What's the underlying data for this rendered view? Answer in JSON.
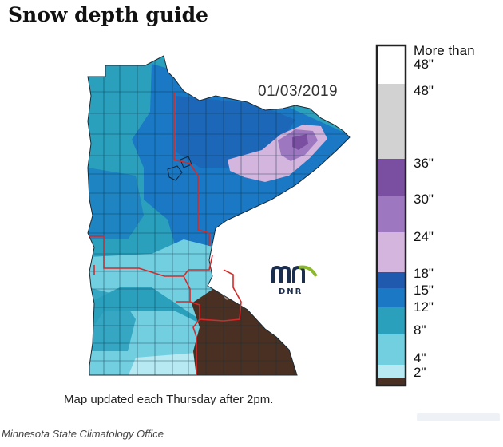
{
  "title": "Snow depth guide",
  "map": {
    "date": "01/03/2019",
    "update_note": "Map updated each Thursday after 2pm.",
    "credit": "Minnesota State Climatology Office",
    "logo": {
      "mark": "mn",
      "text": "DNR",
      "colors": {
        "m": "#1c2e4e",
        "n_arc": "#8cb82b"
      }
    }
  },
  "legend": {
    "bins": [
      {
        "label_top": "More than",
        "label_bottom": "48\"",
        "color": "#ffffff"
      },
      {
        "range": "36-48",
        "color": "#d2d2d2"
      },
      {
        "range": "30-36",
        "color": "#7a4ea0"
      },
      {
        "range": "24-30",
        "color": "#9d78c0"
      },
      {
        "range": "18-24",
        "color": "#d3b5de"
      },
      {
        "range": "15-18",
        "color": "#1f5aaf"
      },
      {
        "range": "12-15",
        "color": "#1a78c4"
      },
      {
        "range": "8-12",
        "color": "#2aa0bd"
      },
      {
        "range": "4-8",
        "color": "#72cfe0"
      },
      {
        "range": "2-4",
        "color": "#b6e9f1"
      },
      {
        "range": "0-2",
        "color": "#4a3022"
      }
    ],
    "tick_labels": [
      "48\"",
      "36\"",
      "30\"",
      "24\"",
      "18\"",
      "15\"",
      "12\"",
      "8\"",
      "4\"",
      "2\""
    ],
    "border_color": "#222222"
  }
}
